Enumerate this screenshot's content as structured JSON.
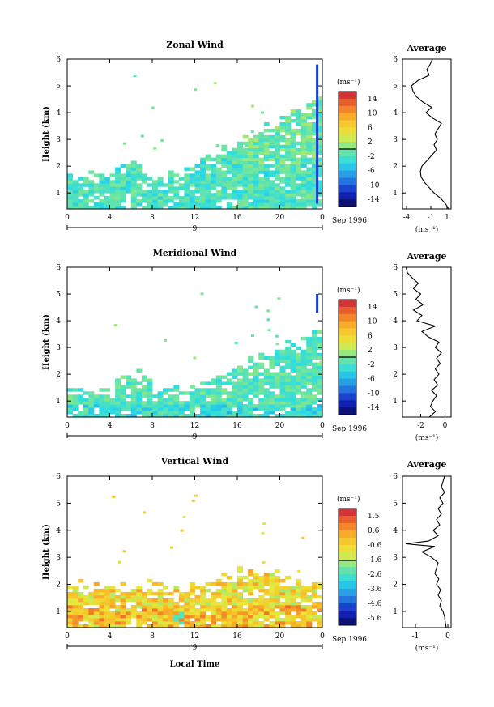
{
  "figure": {
    "date_label": "Sep 1996",
    "xlabel": "Local Time",
    "day_label": "9"
  },
  "chart_data": [
    {
      "type": "heatmap",
      "title": "Zonal Wind",
      "ylabel": "Height (km)",
      "xlabel": "Local Time",
      "x_ticks": [
        "0",
        "4",
        "8",
        "12",
        "16",
        "20",
        "0"
      ],
      "y_ticks": [
        "1",
        "2",
        "3",
        "4",
        "5",
        "6"
      ],
      "xlim": [
        0,
        24
      ],
      "ylim": [
        0.4,
        6.0
      ],
      "colorbar": {
        "unit": "(ms⁻¹)",
        "ticks": [
          "14",
          "10",
          "6",
          "2",
          "-2",
          "-6",
          "-10",
          "-14"
        ],
        "range": [
          -16,
          16
        ]
      },
      "profile": {
        "title": "Average",
        "unit": "(ms⁻¹)",
        "x_ticks": [
          "-4",
          "-1",
          "1"
        ],
        "xlim": [
          -4.5,
          1.5
        ],
        "heights": [
          0.4,
          0.6,
          0.8,
          1.0,
          1.2,
          1.4,
          1.6,
          1.8,
          2.0,
          2.2,
          2.4,
          2.6,
          2.8,
          3.0,
          3.2,
          3.4,
          3.6,
          3.8,
          4.0,
          4.2,
          4.4,
          4.6,
          4.8,
          5.0,
          5.2,
          5.4,
          5.6,
          5.8,
          6.0
        ],
        "values": [
          1.2,
          0.8,
          0.2,
          -0.6,
          -1.2,
          -1.8,
          -2.2,
          -2.3,
          -2.1,
          -1.5,
          -0.9,
          -0.3,
          -0.6,
          -0.2,
          -0.5,
          -0.1,
          0.3,
          -0.8,
          -1.6,
          -0.9,
          -2.0,
          -2.8,
          -3.2,
          -3.4,
          -2.6,
          -1.2,
          -1.5,
          -1.1,
          -0.8
        ]
      }
    },
    {
      "type": "heatmap",
      "title": "Meridional Wind",
      "ylabel": "Height (km)",
      "xlabel": "Local Time",
      "x_ticks": [
        "0",
        "4",
        "8",
        "12",
        "16",
        "20",
        "0"
      ],
      "y_ticks": [
        "1",
        "2",
        "3",
        "4",
        "5",
        "6"
      ],
      "xlim": [
        0,
        24
      ],
      "ylim": [
        0.4,
        6.0
      ],
      "colorbar": {
        "unit": "(ms⁻¹)",
        "ticks": [
          "14",
          "10",
          "6",
          "2",
          "-2",
          "-6",
          "-10",
          "-14"
        ],
        "range": [
          -16,
          16
        ]
      },
      "profile": {
        "title": "Average",
        "unit": "(ms⁻¹)",
        "x_ticks": [
          "-2",
          "0"
        ],
        "xlim": [
          -3.5,
          0.5
        ],
        "heights": [
          0.4,
          0.6,
          0.8,
          1.0,
          1.2,
          1.4,
          1.6,
          1.8,
          2.0,
          2.2,
          2.4,
          2.6,
          2.8,
          3.0,
          3.2,
          3.4,
          3.6,
          3.8,
          4.0,
          4.2,
          4.4,
          4.6,
          4.8,
          5.0,
          5.2,
          5.4,
          5.6,
          5.8,
          6.0
        ],
        "values": [
          -1.3,
          -0.8,
          -1.2,
          -1.0,
          -0.7,
          -1.1,
          -0.6,
          -0.9,
          -0.5,
          -0.8,
          -0.4,
          -0.7,
          -0.3,
          -0.8,
          -0.5,
          -1.4,
          -1.9,
          -0.8,
          -2.3,
          -1.9,
          -2.6,
          -1.8,
          -2.4,
          -2.0,
          -2.6,
          -2.2,
          -2.7,
          -3.1,
          -3.2
        ]
      }
    },
    {
      "type": "heatmap",
      "title": "Vertical Wind",
      "ylabel": "Height (km)",
      "xlabel": "Local Time",
      "x_ticks": [
        "0",
        "4",
        "8",
        "12",
        "16",
        "20",
        "0"
      ],
      "y_ticks": [
        "1",
        "2",
        "3",
        "4",
        "5",
        "6"
      ],
      "xlim": [
        0,
        24
      ],
      "ylim": [
        0.4,
        6.0
      ],
      "colorbar": {
        "unit": "(ms⁻¹)",
        "ticks": [
          "1.5",
          "0.6",
          "-0.6",
          "-1.6",
          "-2.6",
          "-3.6",
          "-4.6",
          "-5.6"
        ],
        "range": [
          -6.0,
          2.0
        ]
      },
      "profile": {
        "title": "Average",
        "unit": "(ms⁻¹)",
        "x_ticks": [
          "-1",
          "0"
        ],
        "xlim": [
          -1.4,
          0.1
        ],
        "heights": [
          0.4,
          0.6,
          0.8,
          1.0,
          1.2,
          1.4,
          1.6,
          1.8,
          2.0,
          2.2,
          2.4,
          2.6,
          2.8,
          3.0,
          3.2,
          3.4,
          3.5,
          3.6,
          3.8,
          4.0,
          4.2,
          4.4,
          4.6,
          4.8,
          5.0,
          5.2,
          5.4,
          5.6,
          5.8,
          6.0
        ],
        "values": [
          -0.05,
          -0.08,
          -0.1,
          -0.15,
          -0.25,
          -0.2,
          -0.3,
          -0.22,
          -0.35,
          -0.28,
          -0.4,
          -0.35,
          -0.3,
          -0.5,
          -0.8,
          -0.4,
          -1.3,
          -0.6,
          -0.3,
          -0.45,
          -0.25,
          -0.35,
          -0.2,
          -0.3,
          -0.15,
          -0.25,
          -0.1,
          -0.2,
          -0.15,
          -0.1
        ]
      }
    }
  ]
}
